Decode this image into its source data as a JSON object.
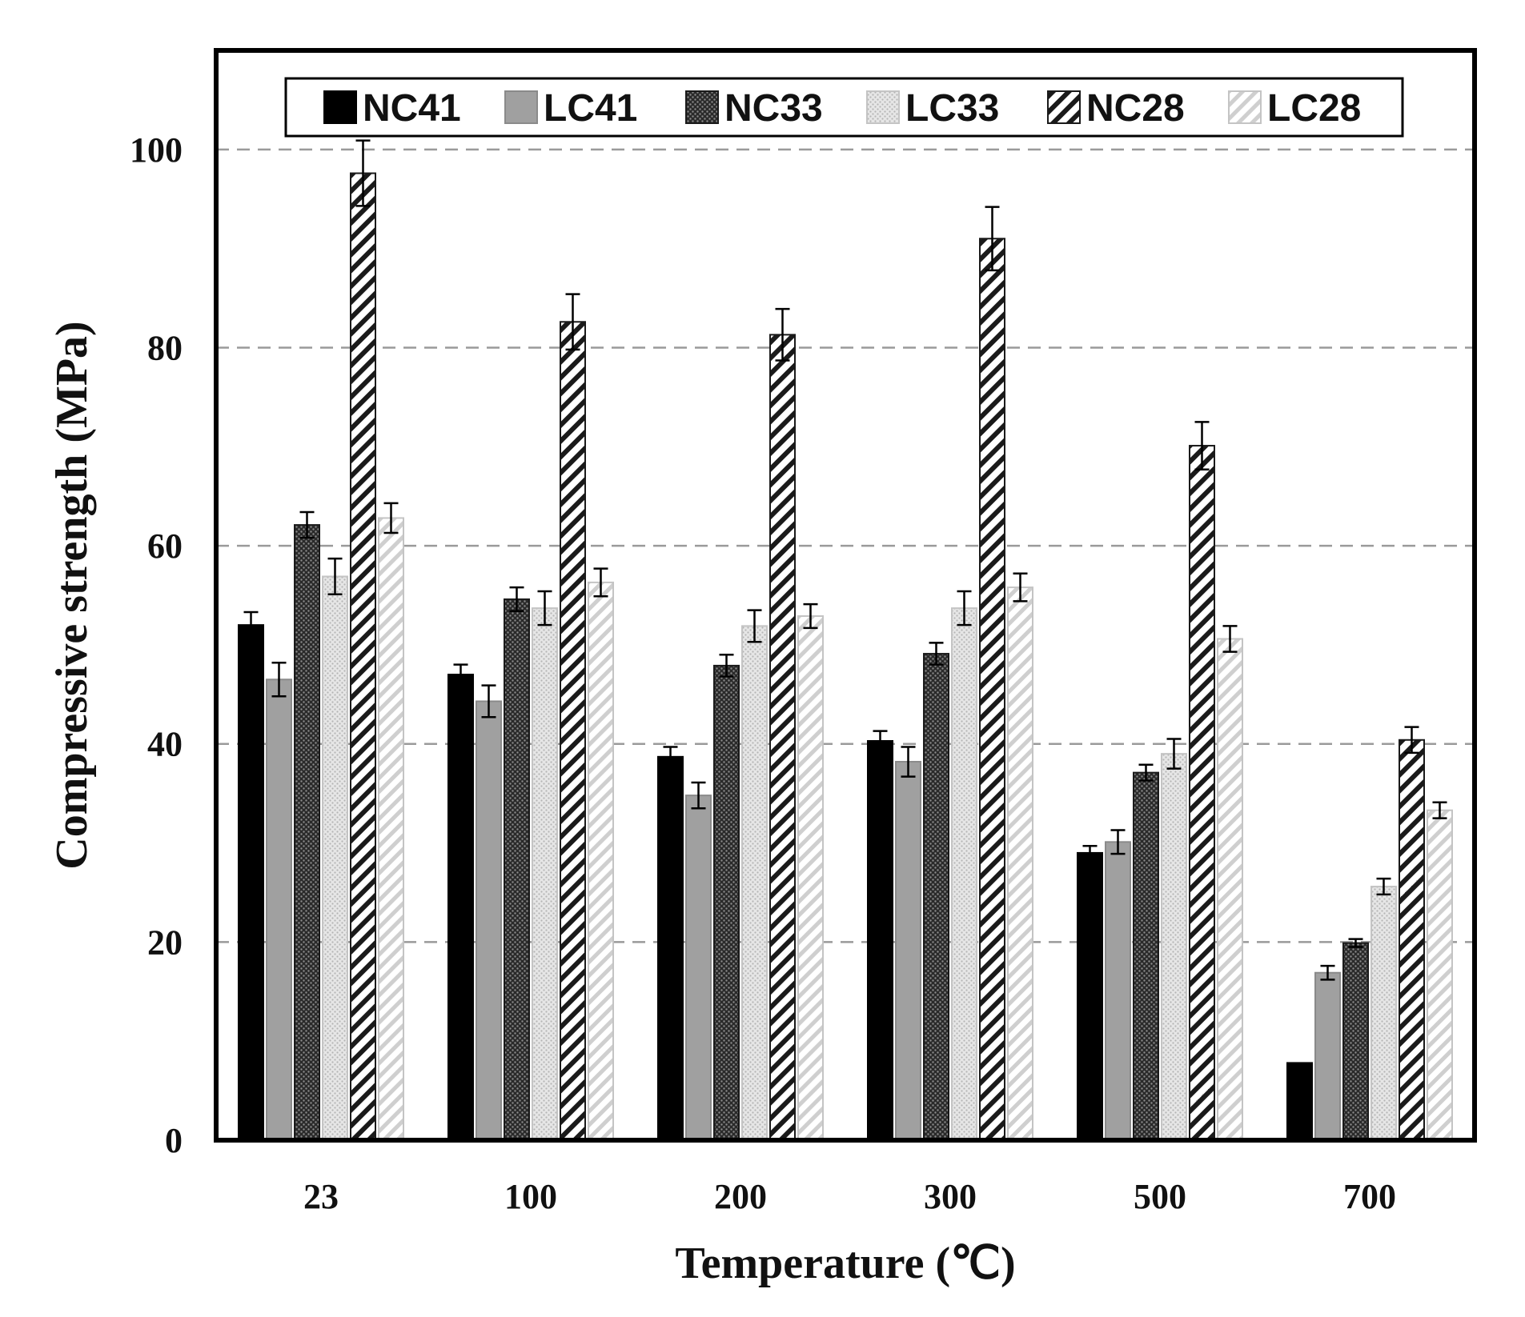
{
  "chart_data": {
    "type": "bar",
    "title": "",
    "xlabel": "Temperature (℃)",
    "ylabel": "Compressive strength (MPa)",
    "categories": [
      "23",
      "100",
      "200",
      "300",
      "500",
      "700"
    ],
    "ylim": [
      0,
      110
    ],
    "yticks": [
      "0",
      "20",
      "40",
      "60",
      "80",
      "100"
    ],
    "grid": "horizontal dashed",
    "legend_position": "top",
    "series": [
      {
        "name": "NC41",
        "pattern": "solid-black",
        "color": "#000000",
        "values": [
          52,
          47,
          38.7,
          40.3,
          29,
          7.8
        ],
        "errors": [
          1.3,
          1.0,
          1.0,
          1.0,
          0.7,
          0
        ]
      },
      {
        "name": "LC41",
        "pattern": "solid-gray",
        "color": "#a0a0a0",
        "values": [
          46.5,
          44.3,
          34.8,
          38.2,
          30.1,
          16.9
        ],
        "errors": [
          1.7,
          1.6,
          1.3,
          1.5,
          1.2,
          0.7
        ]
      },
      {
        "name": "NC33",
        "pattern": "dark-dotted",
        "color": "#3a3a3a",
        "values": [
          62.1,
          54.6,
          47.9,
          49.1,
          37.1,
          19.9
        ],
        "errors": [
          1.3,
          1.2,
          1.1,
          1.1,
          0.8,
          0.4
        ]
      },
      {
        "name": "LC33",
        "pattern": "light-dotted",
        "color": "#dcdcdc",
        "values": [
          56.9,
          53.7,
          51.9,
          53.7,
          39,
          25.6
        ],
        "errors": [
          1.8,
          1.7,
          1.6,
          1.7,
          1.5,
          0.8
        ]
      },
      {
        "name": "NC28",
        "pattern": "dark-hatch",
        "color": "#1a1a1a",
        "values": [
          97.6,
          82.6,
          81.3,
          91,
          70.1,
          40.4
        ],
        "errors": [
          3.3,
          2.8,
          2.6,
          3.2,
          2.4,
          1.3
        ]
      },
      {
        "name": "LC28",
        "pattern": "light-hatch",
        "color": "#cfcfcf",
        "values": [
          62.8,
          56.3,
          52.9,
          55.8,
          50.6,
          33.3
        ],
        "errors": [
          1.5,
          1.4,
          1.2,
          1.4,
          1.3,
          0.8
        ]
      }
    ]
  }
}
